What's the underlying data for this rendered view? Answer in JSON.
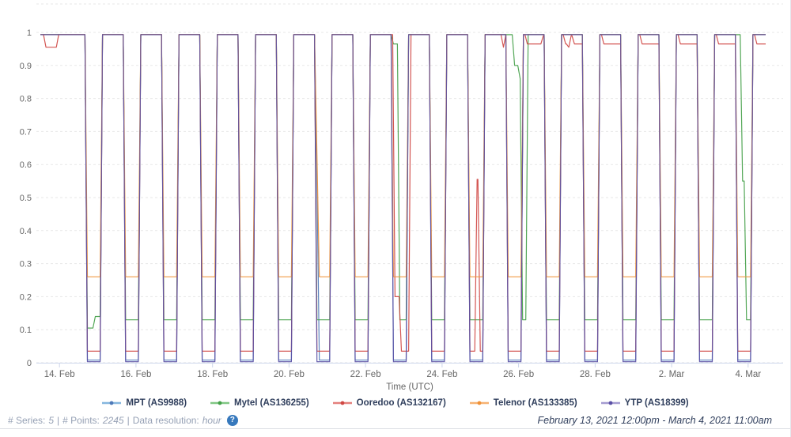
{
  "footer": {
    "series_label": "# Series:",
    "series_value": "5",
    "sep1": "|",
    "points_label": "# Points:",
    "points_value": "2245",
    "sep2": "|",
    "resolution_label": "Data resolution:",
    "resolution_value": "hour",
    "help_icon": "?",
    "date_range": "February 13, 2021 12:00pm - March 4, 2021 11:00am"
  },
  "chart_data": {
    "type": "line",
    "title": "",
    "xlabel": "Time (UTC)",
    "ylabel": "",
    "ylim": [
      0,
      1.09
    ],
    "x_range_hours": 455,
    "x_start": "February 13, 2021 12:00pm UTC",
    "x_end": "March 4, 2021 11:00am UTC",
    "grid": true,
    "legend_position": "bottom",
    "colors": {
      "axis_label": "#666666",
      "axis_line": "#ccd6eb",
      "grid": "#e7e7e7"
    },
    "y_ticks": [
      {
        "v": 0,
        "label": "0"
      },
      {
        "v": 0.1,
        "label": "0.1"
      },
      {
        "v": 0.2,
        "label": "0.2"
      },
      {
        "v": 0.3,
        "label": "0.3"
      },
      {
        "v": 0.4,
        "label": "0.4"
      },
      {
        "v": 0.5,
        "label": "0.5"
      },
      {
        "v": 0.6,
        "label": "0.6"
      },
      {
        "v": 0.7,
        "label": "0.7"
      },
      {
        "v": 0.8,
        "label": "0.8"
      },
      {
        "v": 0.9,
        "label": "0.9"
      },
      {
        "v": 1,
        "label": "1"
      }
    ],
    "x_ticks": [
      {
        "t": 12,
        "label": "14. Feb"
      },
      {
        "t": 60,
        "label": "16. Feb"
      },
      {
        "t": 108,
        "label": "18. Feb"
      },
      {
        "t": 156,
        "label": "20. Feb"
      },
      {
        "t": 204,
        "label": "22. Feb"
      },
      {
        "t": 252,
        "label": "24. Feb"
      },
      {
        "t": 300,
        "label": "26. Feb"
      },
      {
        "t": 348,
        "label": "28. Feb"
      },
      {
        "t": 396,
        "label": "2. Mar"
      },
      {
        "t": 444,
        "label": "4. Mar"
      }
    ],
    "series_note": "levels are [hour_offset_from_start, normalized_signal]; step holds until next entry, ~1.5h ramp between levels; nightly shutdown windows ~each day",
    "series": [
      {
        "name": "MPT (AS9988)",
        "slug": "mpt",
        "color": "#4e79b8",
        "marker_color": "#85b6de",
        "levels": [
          [
            0,
            0.993
          ],
          [
            28,
            0.008
          ],
          [
            37.5,
            0.993
          ],
          [
            52,
            0.008
          ],
          [
            61.5,
            0.993
          ],
          [
            76,
            0.008
          ],
          [
            85.5,
            0.993
          ],
          [
            100,
            0.008
          ],
          [
            109.5,
            0.993
          ],
          [
            124,
            0.008
          ],
          [
            133.5,
            0.993
          ],
          [
            148,
            0.008
          ],
          [
            157.5,
            0.993
          ],
          [
            172,
            0.56
          ],
          [
            173.5,
            0.008
          ],
          [
            181.5,
            0.993
          ],
          [
            196,
            0.008
          ],
          [
            205.5,
            0.993
          ],
          [
            220,
            0.008
          ],
          [
            229.5,
            0.993
          ],
          [
            244,
            0.008
          ],
          [
            253.5,
            0.993
          ],
          [
            268,
            0.008
          ],
          [
            277.5,
            0.993
          ],
          [
            292,
            0.008
          ],
          [
            301.5,
            0.993
          ],
          [
            316,
            0.008
          ],
          [
            325.5,
            0.993
          ],
          [
            340,
            0.008
          ],
          [
            349.5,
            0.993
          ],
          [
            364,
            0.008
          ],
          [
            373.5,
            0.993
          ],
          [
            388,
            0.008
          ],
          [
            397.5,
            0.993
          ],
          [
            412,
            0.008
          ],
          [
            421.5,
            0.993
          ],
          [
            436,
            0.008
          ],
          [
            445.5,
            0.993
          ]
        ]
      },
      {
        "name": "Mytel (AS136255)",
        "slug": "mytel",
        "color": "#44a049",
        "marker_color": "#80c683",
        "levels": [
          [
            0,
            0.993
          ],
          [
            28,
            0.105
          ],
          [
            33,
            0.14
          ],
          [
            37.5,
            0.993
          ],
          [
            52,
            0.13
          ],
          [
            61.5,
            0.993
          ],
          [
            76,
            0.13
          ],
          [
            85.5,
            0.993
          ],
          [
            100,
            0.13
          ],
          [
            109.5,
            0.993
          ],
          [
            124,
            0.13
          ],
          [
            133.5,
            0.993
          ],
          [
            148,
            0.13
          ],
          [
            157.5,
            0.993
          ],
          [
            172,
            0.13
          ],
          [
            181.5,
            0.993
          ],
          [
            196,
            0.13
          ],
          [
            205.5,
            0.993
          ],
          [
            220,
            0.965
          ],
          [
            224,
            0.13
          ],
          [
            229.5,
            0.993
          ],
          [
            244,
            0.13
          ],
          [
            253.5,
            0.993
          ],
          [
            268,
            0.13
          ],
          [
            277.5,
            0.993
          ],
          [
            296,
            0.9
          ],
          [
            299.5,
            0.86
          ],
          [
            301,
            0.13
          ],
          [
            304.5,
            0.993
          ],
          [
            316,
            0.13
          ],
          [
            325.5,
            0.993
          ],
          [
            340,
            0.13
          ],
          [
            349.5,
            0.993
          ],
          [
            364,
            0.13
          ],
          [
            373.5,
            0.993
          ],
          [
            388,
            0.13
          ],
          [
            397.5,
            0.993
          ],
          [
            412,
            0.13
          ],
          [
            421.5,
            0.993
          ],
          [
            439,
            0.55
          ],
          [
            441.5,
            0.13
          ],
          [
            445.5,
            0.993
          ]
        ]
      },
      {
        "name": "Ooredoo (AS132167)",
        "slug": "ooredoo",
        "color": "#cf4743",
        "marker_color": "#e4807d",
        "levels": [
          [
            0,
            0.993
          ],
          [
            2,
            0.955
          ],
          [
            10,
            0.993
          ],
          [
            28,
            0.035
          ],
          [
            37.5,
            0.993
          ],
          [
            52,
            0.035
          ],
          [
            61.5,
            0.993
          ],
          [
            76,
            0.035
          ],
          [
            85.5,
            0.993
          ],
          [
            100,
            0.035
          ],
          [
            109.5,
            0.993
          ],
          [
            124,
            0.035
          ],
          [
            133.5,
            0.993
          ],
          [
            148,
            0.035
          ],
          [
            157.5,
            0.993
          ],
          [
            172,
            0.035
          ],
          [
            181.5,
            0.993
          ],
          [
            196,
            0.035
          ],
          [
            205.5,
            0.993
          ],
          [
            221,
            0.2
          ],
          [
            225,
            0.035
          ],
          [
            231,
            0.993
          ],
          [
            244,
            0.035
          ],
          [
            253.5,
            0.993
          ],
          [
            268,
            0.035
          ],
          [
            272.5,
            0.555
          ],
          [
            274.5,
            0.035
          ],
          [
            277.5,
            0.993
          ],
          [
            289,
            0.955
          ],
          [
            290.5,
            0.993
          ],
          [
            292,
            0.035
          ],
          [
            301.5,
            0.993
          ],
          [
            304,
            0.965
          ],
          [
            314,
            0.99
          ],
          [
            316,
            0.035
          ],
          [
            325.5,
            0.993
          ],
          [
            328,
            0.965
          ],
          [
            330,
            0.955
          ],
          [
            331.5,
            0.99
          ],
          [
            333.5,
            0.965
          ],
          [
            340,
            0.035
          ],
          [
            349.5,
            0.993
          ],
          [
            352,
            0.965
          ],
          [
            364,
            0.035
          ],
          [
            373.5,
            0.993
          ],
          [
            376,
            0.965
          ],
          [
            388,
            0.035
          ],
          [
            397.5,
            0.993
          ],
          [
            400,
            0.965
          ],
          [
            412,
            0.035
          ],
          [
            421.5,
            0.993
          ],
          [
            424,
            0.965
          ],
          [
            436,
            0.035
          ],
          [
            445.5,
            0.993
          ],
          [
            448,
            0.965
          ]
        ]
      },
      {
        "name": "Telenor (AS133385)",
        "slug": "telenor",
        "color": "#f09136",
        "marker_color": "#f6b272",
        "levels": [
          [
            0,
            0.993
          ],
          [
            28,
            0.26
          ],
          [
            37.5,
            0.993
          ],
          [
            52,
            0.26
          ],
          [
            61.5,
            0.993
          ],
          [
            76,
            0.26
          ],
          [
            85.5,
            0.993
          ],
          [
            100,
            0.26
          ],
          [
            109.5,
            0.993
          ],
          [
            124,
            0.26
          ],
          [
            133.5,
            0.993
          ],
          [
            148,
            0.26
          ],
          [
            157.5,
            0.993
          ],
          [
            172,
            0.63
          ],
          [
            173.5,
            0.26
          ],
          [
            181.5,
            0.993
          ],
          [
            196,
            0.26
          ],
          [
            205.5,
            0.993
          ],
          [
            220,
            0.26
          ],
          [
            229.5,
            0.993
          ],
          [
            244,
            0.26
          ],
          [
            253.5,
            0.993
          ],
          [
            268,
            0.26
          ],
          [
            277.5,
            0.993
          ],
          [
            292,
            0.26
          ],
          [
            301.5,
            0.993
          ],
          [
            316,
            0.26
          ],
          [
            325.5,
            0.993
          ],
          [
            340,
            0.26
          ],
          [
            349.5,
            0.993
          ],
          [
            364,
            0.26
          ],
          [
            373.5,
            0.993
          ],
          [
            388,
            0.26
          ],
          [
            397.5,
            0.993
          ],
          [
            412,
            0.26
          ],
          [
            421.5,
            0.993
          ],
          [
            436,
            0.26
          ],
          [
            445.5,
            0.993
          ]
        ]
      },
      {
        "name": "YTP (AS18399)",
        "slug": "ytp",
        "color": "#5a50a5",
        "marker_color": "#a49bd0",
        "levels": [
          [
            0,
            0.993
          ],
          [
            28,
            0.003
          ],
          [
            37.5,
            0.993
          ],
          [
            52,
            0.003
          ],
          [
            61.5,
            0.993
          ],
          [
            76,
            0.003
          ],
          [
            85.5,
            0.993
          ],
          [
            100,
            0.003
          ],
          [
            109.5,
            0.993
          ],
          [
            124,
            0.003
          ],
          [
            133.5,
            0.993
          ],
          [
            148,
            0.003
          ],
          [
            157.5,
            0.993
          ],
          [
            172,
            0.003
          ],
          [
            181.5,
            0.993
          ],
          [
            196,
            0.003
          ],
          [
            205.5,
            0.993
          ],
          [
            220,
            0.003
          ],
          [
            229.5,
            0.993
          ],
          [
            244,
            0.003
          ],
          [
            253.5,
            0.993
          ],
          [
            268,
            0.003
          ],
          [
            277.5,
            0.993
          ],
          [
            292,
            0.003
          ],
          [
            301.5,
            0.993
          ],
          [
            316,
            0.003
          ],
          [
            325.5,
            0.993
          ],
          [
            340,
            0.003
          ],
          [
            349.5,
            0.993
          ],
          [
            364,
            0.003
          ],
          [
            373.5,
            0.993
          ],
          [
            388,
            0.003
          ],
          [
            397.5,
            0.993
          ],
          [
            412,
            0.003
          ],
          [
            421.5,
            0.993
          ],
          [
            436,
            0.003
          ],
          [
            445.5,
            0.993
          ]
        ]
      }
    ]
  }
}
